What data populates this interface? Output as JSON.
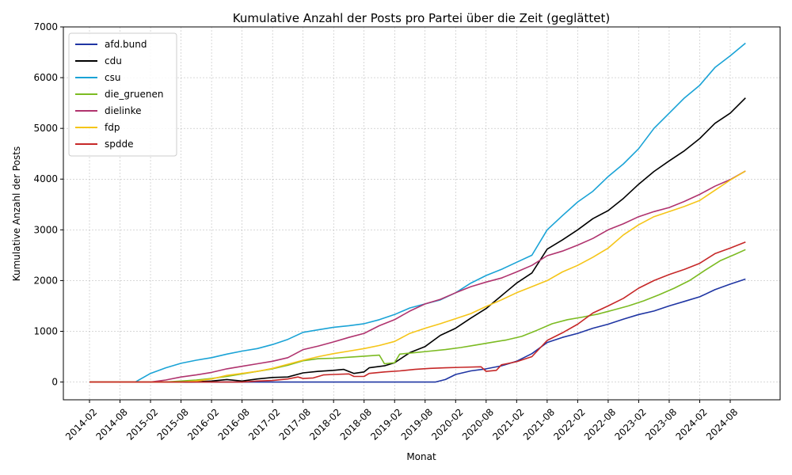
{
  "chart_data": {
    "type": "line",
    "title": "Kumulative Anzahl der Posts pro Partei über die Zeit (geglättet)",
    "xlabel": "Monat",
    "ylabel": "Kumulative Anzahl der Posts",
    "ylim": [
      -350,
      7000
    ],
    "yticks": [
      0,
      1000,
      2000,
      3000,
      4000,
      5000,
      6000,
      7000
    ],
    "xlim": [
      "2014-02",
      "2024-12"
    ],
    "xticks": [
      "2014-02",
      "2014-08",
      "2015-02",
      "2015-08",
      "2016-02",
      "2016-08",
      "2017-02",
      "2017-08",
      "2018-02",
      "2018-08",
      "2019-02",
      "2019-08",
      "2020-02",
      "2020-08",
      "2021-02",
      "2021-08",
      "2022-02",
      "2022-08",
      "2023-02",
      "2023-08",
      "2024-02",
      "2024-08"
    ],
    "grid": true,
    "legend_position": "top-left",
    "series": [
      {
        "name": "afd.bund",
        "color": "#1f35a3",
        "points": [
          [
            "2014-02",
            0
          ],
          [
            "2019-10",
            0
          ],
          [
            "2019-12",
            50
          ],
          [
            "2020-02",
            150
          ],
          [
            "2020-05",
            220
          ],
          [
            "2020-08",
            260
          ],
          [
            "2020-11",
            320
          ],
          [
            "2021-02",
            410
          ],
          [
            "2021-05",
            560
          ],
          [
            "2021-08",
            780
          ],
          [
            "2021-11",
            880
          ],
          [
            "2022-02",
            960
          ],
          [
            "2022-05",
            1060
          ],
          [
            "2022-08",
            1140
          ],
          [
            "2022-11",
            1240
          ],
          [
            "2023-02",
            1330
          ],
          [
            "2023-05",
            1400
          ],
          [
            "2023-08",
            1500
          ],
          [
            "2023-11",
            1590
          ],
          [
            "2024-02",
            1680
          ],
          [
            "2024-05",
            1820
          ],
          [
            "2024-08",
            1930
          ],
          [
            "2024-11",
            2030
          ]
        ]
      },
      {
        "name": "cdu",
        "color": "#000000",
        "points": [
          [
            "2014-02",
            0
          ],
          [
            "2015-10",
            0
          ],
          [
            "2016-02",
            20
          ],
          [
            "2016-05",
            50
          ],
          [
            "2016-08",
            20
          ],
          [
            "2016-11",
            60
          ],
          [
            "2017-02",
            90
          ],
          [
            "2017-05",
            100
          ],
          [
            "2017-08",
            180
          ],
          [
            "2017-11",
            210
          ],
          [
            "2018-02",
            230
          ],
          [
            "2018-04",
            250
          ],
          [
            "2018-06",
            170
          ],
          [
            "2018-08",
            200
          ],
          [
            "2018-09",
            280
          ],
          [
            "2018-12",
            320
          ],
          [
            "2019-02",
            380
          ],
          [
            "2019-05",
            580
          ],
          [
            "2019-08",
            700
          ],
          [
            "2019-11",
            920
          ],
          [
            "2020-02",
            1060
          ],
          [
            "2020-05",
            1260
          ],
          [
            "2020-08",
            1450
          ],
          [
            "2020-11",
            1700
          ],
          [
            "2021-02",
            1950
          ],
          [
            "2021-05",
            2150
          ],
          [
            "2021-08",
            2620
          ],
          [
            "2021-11",
            2800
          ],
          [
            "2022-02",
            3000
          ],
          [
            "2022-05",
            3220
          ],
          [
            "2022-08",
            3380
          ],
          [
            "2022-11",
            3620
          ],
          [
            "2023-02",
            3900
          ],
          [
            "2023-05",
            4150
          ],
          [
            "2023-08",
            4360
          ],
          [
            "2023-11",
            4560
          ],
          [
            "2024-02",
            4800
          ],
          [
            "2024-05",
            5100
          ],
          [
            "2024-08",
            5300
          ],
          [
            "2024-11",
            5600
          ]
        ]
      },
      {
        "name": "csu",
        "color": "#1aa3d6",
        "points": [
          [
            "2014-02",
            0
          ],
          [
            "2014-11",
            0
          ],
          [
            "2015-02",
            170
          ],
          [
            "2015-05",
            280
          ],
          [
            "2015-08",
            370
          ],
          [
            "2015-11",
            430
          ],
          [
            "2016-02",
            480
          ],
          [
            "2016-05",
            550
          ],
          [
            "2016-08",
            610
          ],
          [
            "2016-11",
            660
          ],
          [
            "2017-02",
            740
          ],
          [
            "2017-05",
            840
          ],
          [
            "2017-08",
            980
          ],
          [
            "2017-11",
            1030
          ],
          [
            "2018-02",
            1080
          ],
          [
            "2018-05",
            1110
          ],
          [
            "2018-08",
            1150
          ],
          [
            "2018-11",
            1230
          ],
          [
            "2019-02",
            1330
          ],
          [
            "2019-05",
            1460
          ],
          [
            "2019-08",
            1540
          ],
          [
            "2019-11",
            1620
          ],
          [
            "2020-02",
            1760
          ],
          [
            "2020-05",
            1950
          ],
          [
            "2020-08",
            2100
          ],
          [
            "2020-11",
            2220
          ],
          [
            "2021-02",
            2360
          ],
          [
            "2021-05",
            2500
          ],
          [
            "2021-08",
            3000
          ],
          [
            "2021-11",
            3280
          ],
          [
            "2022-02",
            3550
          ],
          [
            "2022-05",
            3760
          ],
          [
            "2022-08",
            4050
          ],
          [
            "2022-11",
            4300
          ],
          [
            "2023-02",
            4600
          ],
          [
            "2023-05",
            5000
          ],
          [
            "2023-08",
            5300
          ],
          [
            "2023-11",
            5600
          ],
          [
            "2024-02",
            5850
          ],
          [
            "2024-05",
            6200
          ],
          [
            "2024-08",
            6430
          ],
          [
            "2024-11",
            6680
          ]
        ]
      },
      {
        "name": "die_gruenen",
        "color": "#7cbb22",
        "points": [
          [
            "2014-02",
            0
          ],
          [
            "2015-05",
            0
          ],
          [
            "2015-08",
            20
          ],
          [
            "2015-11",
            40
          ],
          [
            "2016-02",
            70
          ],
          [
            "2016-05",
            110
          ],
          [
            "2016-08",
            160
          ],
          [
            "2016-11",
            210
          ],
          [
            "2017-02",
            260
          ],
          [
            "2017-05",
            330
          ],
          [
            "2017-08",
            420
          ],
          [
            "2017-11",
            460
          ],
          [
            "2018-02",
            470
          ],
          [
            "2018-05",
            490
          ],
          [
            "2018-08",
            510
          ],
          [
            "2018-11",
            530
          ],
          [
            "2018-12",
            360
          ],
          [
            "2019-02",
            380
          ],
          [
            "2019-03",
            550
          ],
          [
            "2019-06",
            580
          ],
          [
            "2019-09",
            610
          ],
          [
            "2019-12",
            640
          ],
          [
            "2020-03",
            680
          ],
          [
            "2020-06",
            730
          ],
          [
            "2020-09",
            780
          ],
          [
            "2020-12",
            830
          ],
          [
            "2021-03",
            900
          ],
          [
            "2021-06",
            1020
          ],
          [
            "2021-09",
            1150
          ],
          [
            "2021-12",
            1230
          ],
          [
            "2022-03",
            1280
          ],
          [
            "2022-06",
            1340
          ],
          [
            "2022-09",
            1420
          ],
          [
            "2022-12",
            1500
          ],
          [
            "2023-03",
            1600
          ],
          [
            "2023-06",
            1720
          ],
          [
            "2023-09",
            1850
          ],
          [
            "2023-12",
            2000
          ],
          [
            "2024-03",
            2200
          ],
          [
            "2024-06",
            2390
          ],
          [
            "2024-09",
            2520
          ],
          [
            "2024-11",
            2610
          ]
        ]
      },
      {
        "name": "dielinke",
        "color": "#b0336e",
        "points": [
          [
            "2014-02",
            0
          ],
          [
            "2015-02",
            0
          ],
          [
            "2015-05",
            40
          ],
          [
            "2015-08",
            100
          ],
          [
            "2015-11",
            140
          ],
          [
            "2016-02",
            190
          ],
          [
            "2016-05",
            260
          ],
          [
            "2016-08",
            310
          ],
          [
            "2016-11",
            360
          ],
          [
            "2017-02",
            410
          ],
          [
            "2017-05",
            480
          ],
          [
            "2017-08",
            640
          ],
          [
            "2017-11",
            710
          ],
          [
            "2018-02",
            790
          ],
          [
            "2018-05",
            880
          ],
          [
            "2018-08",
            960
          ],
          [
            "2018-11",
            1110
          ],
          [
            "2019-02",
            1230
          ],
          [
            "2019-05",
            1400
          ],
          [
            "2019-08",
            1540
          ],
          [
            "2019-11",
            1630
          ],
          [
            "2020-02",
            1760
          ],
          [
            "2020-05",
            1880
          ],
          [
            "2020-08",
            1970
          ],
          [
            "2020-11",
            2050
          ],
          [
            "2021-02",
            2170
          ],
          [
            "2021-05",
            2300
          ],
          [
            "2021-08",
            2490
          ],
          [
            "2021-11",
            2580
          ],
          [
            "2022-02",
            2700
          ],
          [
            "2022-05",
            2830
          ],
          [
            "2022-08",
            3000
          ],
          [
            "2022-11",
            3120
          ],
          [
            "2023-02",
            3260
          ],
          [
            "2023-05",
            3360
          ],
          [
            "2023-08",
            3440
          ],
          [
            "2023-11",
            3560
          ],
          [
            "2024-02",
            3700
          ],
          [
            "2024-05",
            3860
          ],
          [
            "2024-08",
            3990
          ],
          [
            "2024-11",
            4160
          ]
        ]
      },
      {
        "name": "fdp",
        "color": "#f5c518",
        "points": [
          [
            "2014-02",
            0
          ],
          [
            "2015-08",
            0
          ],
          [
            "2015-11",
            20
          ],
          [
            "2016-02",
            60
          ],
          [
            "2016-05",
            130
          ],
          [
            "2016-08",
            170
          ],
          [
            "2016-11",
            210
          ],
          [
            "2017-02",
            270
          ],
          [
            "2017-05",
            350
          ],
          [
            "2017-08",
            430
          ],
          [
            "2017-11",
            500
          ],
          [
            "2018-02",
            560
          ],
          [
            "2018-05",
            610
          ],
          [
            "2018-08",
            660
          ],
          [
            "2018-11",
            720
          ],
          [
            "2019-02",
            800
          ],
          [
            "2019-05",
            960
          ],
          [
            "2019-08",
            1060
          ],
          [
            "2019-11",
            1150
          ],
          [
            "2020-02",
            1250
          ],
          [
            "2020-05",
            1350
          ],
          [
            "2020-08",
            1490
          ],
          [
            "2020-11",
            1620
          ],
          [
            "2021-02",
            1760
          ],
          [
            "2021-05",
            1880
          ],
          [
            "2021-08",
            2000
          ],
          [
            "2021-11",
            2170
          ],
          [
            "2022-02",
            2300
          ],
          [
            "2022-05",
            2460
          ],
          [
            "2022-08",
            2640
          ],
          [
            "2022-11",
            2900
          ],
          [
            "2023-02",
            3100
          ],
          [
            "2023-05",
            3260
          ],
          [
            "2023-08",
            3360
          ],
          [
            "2023-11",
            3460
          ],
          [
            "2024-02",
            3580
          ],
          [
            "2024-05",
            3780
          ],
          [
            "2024-08",
            3980
          ],
          [
            "2024-11",
            4160
          ]
        ]
      },
      {
        "name": "spdde",
        "color": "#c62828",
        "points": [
          [
            "2014-02",
            0
          ],
          [
            "2016-08",
            0
          ],
          [
            "2016-11",
            20
          ],
          [
            "2017-02",
            30
          ],
          [
            "2017-05",
            60
          ],
          [
            "2017-07",
            100
          ],
          [
            "2017-08",
            70
          ],
          [
            "2017-10",
            80
          ],
          [
            "2017-12",
            140
          ],
          [
            "2018-02",
            150
          ],
          [
            "2018-05",
            160
          ],
          [
            "2018-06",
            110
          ],
          [
            "2018-08",
            110
          ],
          [
            "2018-09",
            170
          ],
          [
            "2018-12",
            200
          ],
          [
            "2019-03",
            220
          ],
          [
            "2019-06",
            250
          ],
          [
            "2019-09",
            270
          ],
          [
            "2019-12",
            280
          ],
          [
            "2020-03",
            290
          ],
          [
            "2020-07",
            300
          ],
          [
            "2020-08",
            210
          ],
          [
            "2020-10",
            230
          ],
          [
            "2020-11",
            340
          ],
          [
            "2021-02",
            400
          ],
          [
            "2021-05",
            500
          ],
          [
            "2021-08",
            820
          ],
          [
            "2021-11",
            970
          ],
          [
            "2022-02",
            1140
          ],
          [
            "2022-05",
            1360
          ],
          [
            "2022-08",
            1500
          ],
          [
            "2022-11",
            1650
          ],
          [
            "2023-02",
            1850
          ],
          [
            "2023-05",
            2000
          ],
          [
            "2023-08",
            2120
          ],
          [
            "2023-11",
            2220
          ],
          [
            "2024-02",
            2340
          ],
          [
            "2024-05",
            2530
          ],
          [
            "2024-08",
            2640
          ],
          [
            "2024-11",
            2760
          ]
        ]
      }
    ]
  }
}
